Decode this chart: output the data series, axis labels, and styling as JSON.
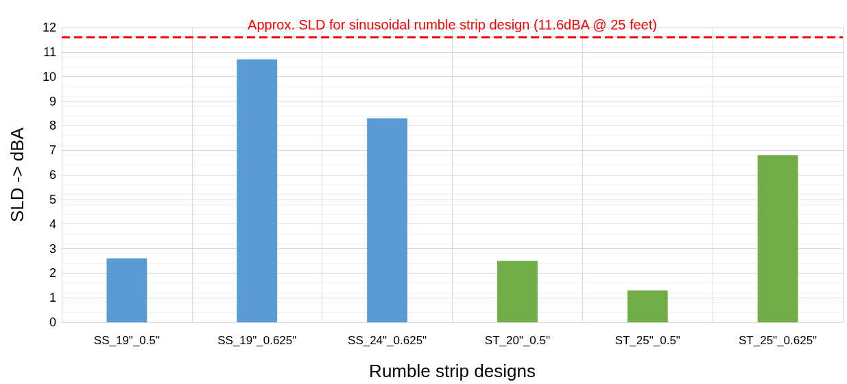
{
  "chart_data": {
    "type": "bar",
    "xlabel": "Rumble strip designs",
    "ylabel": "SLD -> dBA",
    "categories": [
      "SS_19\"_0.5\"",
      "SS_19\"_0.625\"",
      "SS_24\"_0.625\"",
      "ST_20\"_0.5\"",
      "ST_25\"_0.5\"",
      "ST_25\"_0.625\""
    ],
    "values": [
      2.6,
      10.7,
      8.3,
      2.5,
      1.3,
      6.8
    ],
    "colors": [
      "#5b9bd5",
      "#5b9bd5",
      "#5b9bd5",
      "#70ad47",
      "#70ad47",
      "#70ad47"
    ],
    "ylim": [
      0,
      12
    ],
    "yticks": [
      0,
      1,
      2,
      3,
      4,
      5,
      6,
      7,
      8,
      9,
      10,
      11,
      12
    ],
    "grid": true,
    "ref_lines": [
      {
        "axis": "y",
        "value": 11.6,
        "label": "Approx. SLD for sinusoidal rumble strip design (11.6dBA @ 25 feet)",
        "color": "#ff0000",
        "line_style": "dashed"
      }
    ]
  }
}
